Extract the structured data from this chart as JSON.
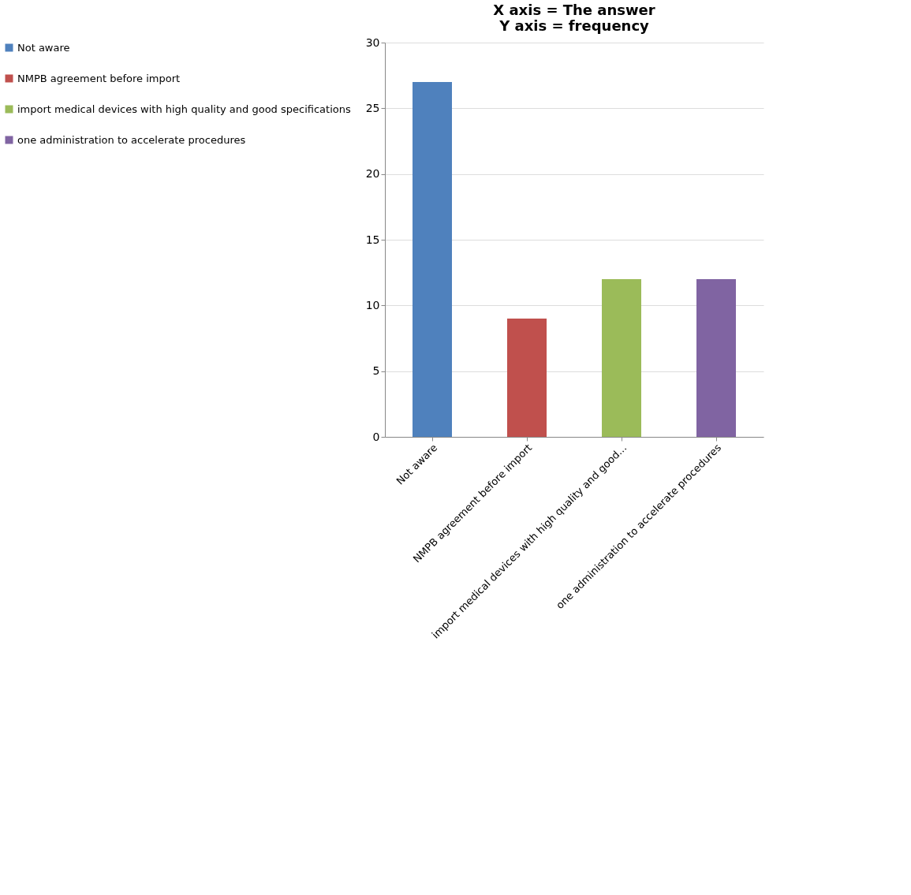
{
  "chart_data": {
    "type": "bar",
    "title": [
      "X axis = The answer",
      "Y axis = frequency"
    ],
    "categories": [
      "Not aware",
      "NMPB agreement before import",
      "import medical devices with high quality and good...",
      "one administration to accelerate procedures"
    ],
    "series": [
      {
        "name": "Not aware",
        "color": "#4f81bd",
        "values": [
          27,
          null,
          null,
          null
        ]
      },
      {
        "name": "NMPB agreement before import",
        "color": "#c0504d",
        "values": [
          null,
          9,
          null,
          null
        ]
      },
      {
        "name": "import medical devices with high quality and good specifications",
        "color": "#9bbb59",
        "values": [
          null,
          null,
          12,
          null
        ]
      },
      {
        "name": "one administration to accelerate procedures",
        "color": "#8064a2",
        "values": [
          null,
          null,
          null,
          12
        ]
      }
    ],
    "ylim": [
      0,
      30
    ],
    "yticks": [
      0,
      5,
      10,
      15,
      20,
      25,
      30
    ],
    "grid": "y",
    "legend": "left"
  }
}
